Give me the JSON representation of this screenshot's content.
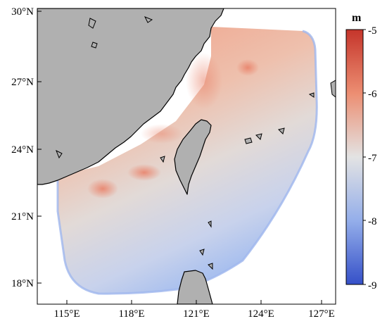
{
  "map": {
    "colorbar_unit": "m",
    "colorbar_ticks": [
      "-5",
      "-6",
      "-7",
      "-8",
      "-9"
    ],
    "lat_labels": [
      "30°N",
      "27°N",
      "24°N",
      "21°N",
      "18°N"
    ],
    "lon_labels": [
      "115°E",
      "118°E",
      "121°E",
      "124°E",
      "127°E"
    ],
    "value_range": [
      -9,
      -5
    ],
    "colormap": {
      "low": "#3a5bd6",
      "mid": "#dedede",
      "high": "#d2382f"
    },
    "land_color": "#b0b0b0",
    "coastline_color": "#000000",
    "extent": {
      "lon": [
        113.5,
        128.5
      ],
      "lat": [
        17,
        30
      ]
    }
  }
}
